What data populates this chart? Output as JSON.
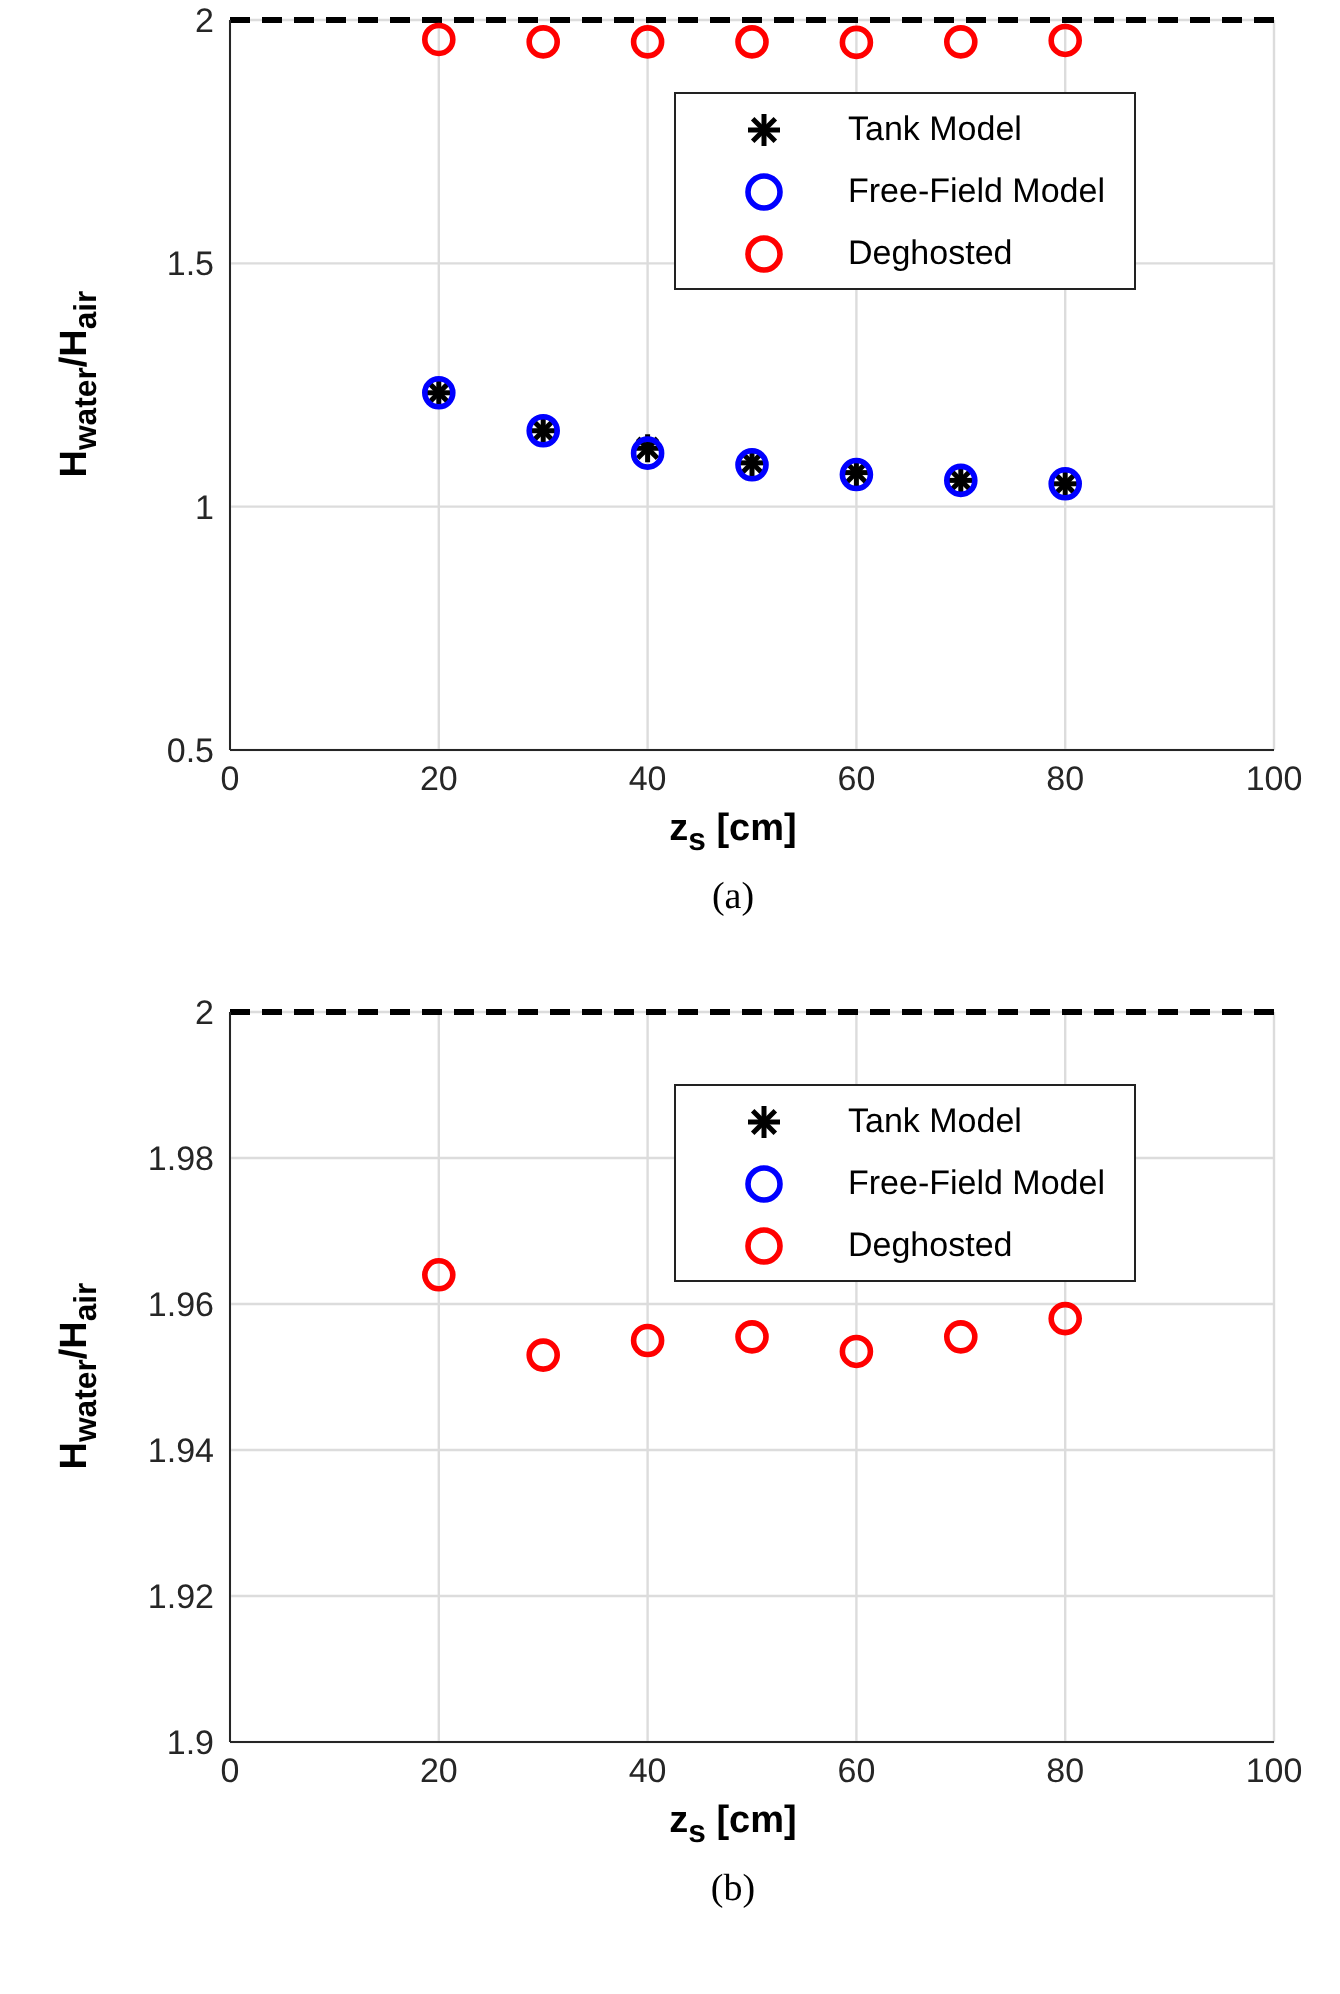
{
  "chart_data": [
    {
      "type": "scatter",
      "x": [
        20,
        30,
        40,
        50,
        60,
        70,
        80
      ],
      "xlabel": "z$_{s}$ [cm]",
      "ylabel": "H$_{water}$/H$_{air}$",
      "xlim": [
        0,
        100
      ],
      "xticks": [
        0,
        20,
        40,
        60,
        80,
        100
      ],
      "ylim": [
        0.5,
        2
      ],
      "yticks": [
        0.5,
        1,
        1.5,
        2
      ],
      "grid": true,
      "legend": "top right",
      "annotations": [
        "(a)"
      ],
      "ref_lines": [
        {
          "axis": "y",
          "value": 2,
          "color": "#000000",
          "line_style": "dashed"
        }
      ],
      "series": [
        {
          "name": "Tank Model",
          "color": "#000000",
          "marker": "cross",
          "values": [
            1.234,
            1.156,
            1.12,
            1.09,
            1.07,
            1.054,
            1.047
          ]
        },
        {
          "name": "Free-Field Model",
          "color": "#0000ff",
          "marker": "circle",
          "values": [
            1.234,
            1.156,
            1.11,
            1.086,
            1.066,
            1.054,
            1.047
          ]
        },
        {
          "name": "Deghosted",
          "color": "#ff0000",
          "marker": "circle",
          "values": [
            1.96,
            1.955,
            1.955,
            1.955,
            1.954,
            1.955,
            1.958
          ]
        }
      ]
    },
    {
      "type": "scatter",
      "x": [
        20,
        30,
        40,
        50,
        60,
        70,
        80
      ],
      "xlabel": "z$_{s}$ [cm]",
      "ylabel": "H$_{water}$/H$_{air}$",
      "xlim": [
        0,
        100
      ],
      "xticks": [
        0,
        20,
        40,
        60,
        80,
        100
      ],
      "ylim": [
        1.9,
        2
      ],
      "yticks": [
        1.9,
        1.92,
        1.94,
        1.96,
        1.98,
        2
      ],
      "grid": true,
      "legend": "top right",
      "annotations": [
        "(b)"
      ],
      "ref_lines": [
        {
          "axis": "y",
          "value": 2,
          "color": "#000000",
          "line_style": "dashed"
        }
      ],
      "series": [
        {
          "name": "Tank Model",
          "color": "#000000",
          "marker": "cross",
          "values": [
            null,
            null,
            null,
            null,
            null,
            null,
            null
          ]
        },
        {
          "name": "Free-Field Model",
          "color": "#0000ff",
          "marker": "circle",
          "values": [
            null,
            null,
            null,
            null,
            null,
            null,
            null
          ]
        },
        {
          "name": "Deghosted",
          "color": "#ff0000",
          "marker": "circle",
          "values": [
            1.964,
            1.953,
            1.955,
            1.9555,
            1.9535,
            1.9555,
            1.958
          ]
        }
      ]
    }
  ]
}
